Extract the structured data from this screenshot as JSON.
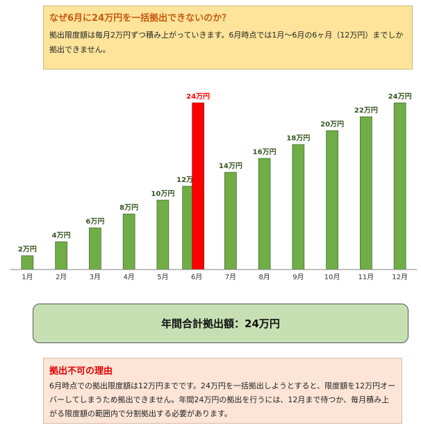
{
  "top_box": {
    "title": "なぜ6月に24万円を一括拠出できないのか？",
    "body": "拠出限度額は毎月2万円ずつ積み上がっていきます。6月時点では1月〜6月の6ヶ月（12万円）までしか拠出できません。"
  },
  "chart_data": {
    "type": "bar",
    "categories": [
      "1月",
      "2月",
      "3月",
      "4月",
      "5月",
      "6月",
      "7月",
      "8月",
      "9月",
      "10月",
      "11月",
      "12月"
    ],
    "series": [
      {
        "values": [
          2,
          4,
          6,
          8,
          10,
          12,
          14,
          16,
          18,
          20,
          22,
          24
        ],
        "labels": [
          "2万円",
          "4万円",
          "6万円",
          "8万円",
          "10万円",
          "12万円",
          "14万円",
          "16万円",
          "18万円",
          "20万円",
          "22万円",
          "24万円"
        ],
        "color": "#70ad47"
      }
    ],
    "highlight": {
      "category": "6月",
      "value": 24,
      "label": "24万円",
      "color": "#ff0000"
    },
    "ylim": [
      0,
      24
    ],
    "grid": false
  },
  "total_box": {
    "text": "年間合計拠出額：24万円"
  },
  "bottom_box": {
    "title": "拠出不可の理由",
    "body": "6月時点での拠出限度額は12万円までです。24万円を一括拠出しようとすると、限度額を12万円オーバーしてしまうため拠出できません。年間24万円の拠出を行うには、12月まで待つか、毎月積み上がる限度額の範囲内で分割拠出する必要があります。"
  },
  "colors": {
    "bar": "#70ad47",
    "highlight": "#ff0000",
    "label_green": "#375623",
    "title_orange": "#c65a11",
    "title_red": "#e00000"
  }
}
